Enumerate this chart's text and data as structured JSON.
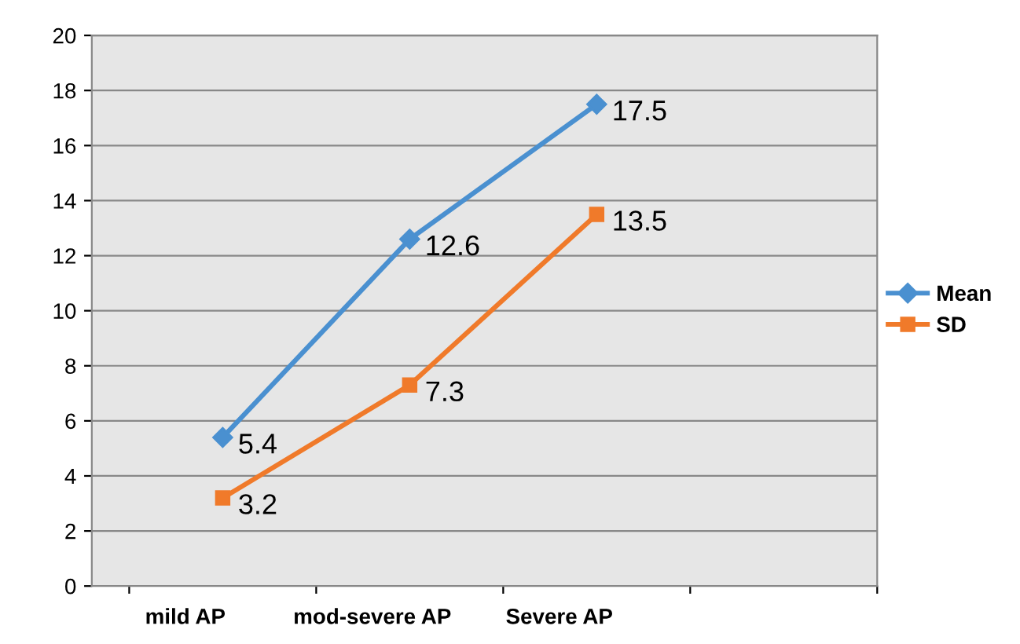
{
  "chart_data": {
    "type": "line",
    "categories": [
      "mild AP",
      "mod-severe AP",
      "Severe AP"
    ],
    "series": [
      {
        "name": "Mean",
        "color": "#4a90d0",
        "marker": "diamond",
        "values": [
          5.4,
          12.6,
          17.5
        ]
      },
      {
        "name": "SD",
        "color": "#f07a2a",
        "marker": "square",
        "values": [
          3.2,
          7.3,
          13.5
        ]
      }
    ],
    "ylim": [
      0,
      20
    ],
    "yticks": [
      0,
      2,
      4,
      6,
      8,
      10,
      12,
      14,
      16,
      18,
      20
    ],
    "grid": "y",
    "legend": "right",
    "data_labels": true,
    "line_style": "solid"
  }
}
